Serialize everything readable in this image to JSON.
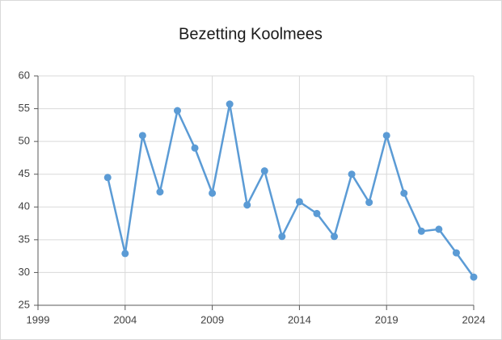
{
  "chart_data": {
    "type": "line",
    "title": "Bezetting Koolmees",
    "x": [
      2003,
      2004,
      2005,
      2006,
      2007,
      2008,
      2009,
      2010,
      2011,
      2012,
      2013,
      2014,
      2015,
      2016,
      2017,
      2018,
      2019,
      2020,
      2021,
      2022,
      2023,
      2024
    ],
    "series": [
      {
        "name": "Bezetting Koolmees",
        "color": "#5b9bd5",
        "values": [
          44.5,
          32.9,
          50.9,
          42.3,
          54.7,
          49.0,
          42.1,
          55.7,
          40.3,
          45.5,
          35.5,
          40.8,
          39.0,
          35.5,
          45.0,
          40.7,
          50.9,
          42.1,
          36.3,
          36.6,
          33.0,
          29.3
        ]
      }
    ],
    "xlim": [
      1999,
      2024
    ],
    "xticks": [
      1999,
      2004,
      2009,
      2014,
      2019,
      2024
    ],
    "ylim": [
      25,
      60
    ],
    "yticks": [
      25,
      30,
      35,
      40,
      45,
      50,
      55,
      60
    ],
    "grid": true
  }
}
